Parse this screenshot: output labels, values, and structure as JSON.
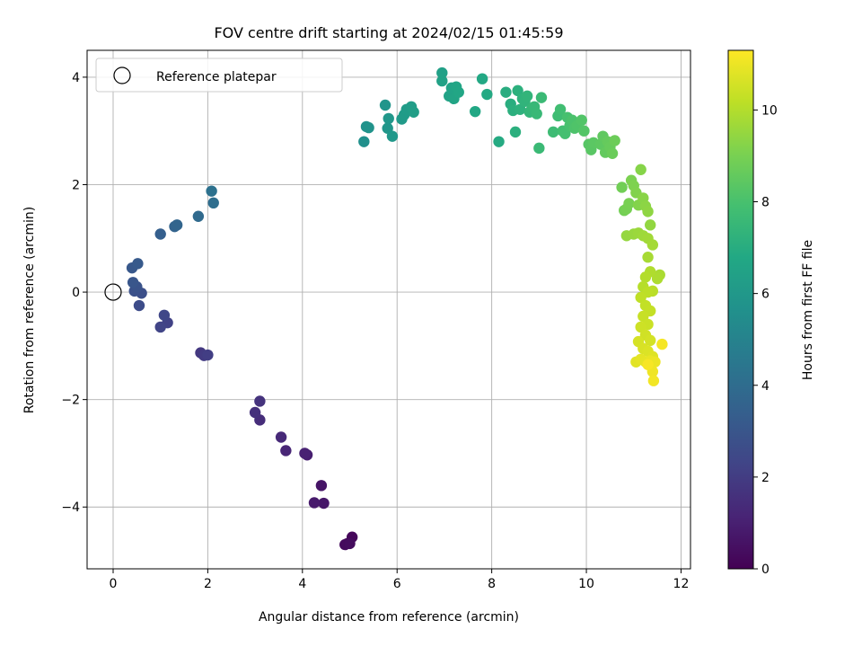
{
  "chart_data": {
    "type": "scatter",
    "title": "FOV centre drift starting at 2024/02/15 01:45:59",
    "xlabel": "Angular distance from reference (arcmin)",
    "ylabel": "Rotation from reference (arcmin)",
    "xlim": [
      -0.55,
      12.2
    ],
    "ylim": [
      -5.15,
      4.5
    ],
    "xticks": [
      "0",
      "2",
      "4",
      "6",
      "8",
      "10",
      "12"
    ],
    "xtick_values": [
      0,
      2,
      4,
      6,
      8,
      10,
      12
    ],
    "yticks": [
      "−4",
      "−2",
      "0",
      "2",
      "4"
    ],
    "ytick_values": [
      -4,
      -2,
      0,
      2,
      4
    ],
    "grid": true,
    "legend": {
      "placement": "top-left",
      "entries": [
        "Reference platepar"
      ]
    },
    "reference_point": {
      "x": 0,
      "y": 0
    },
    "colorbar": {
      "label": "Hours from first FF file",
      "colormap": "viridis",
      "min": 0,
      "max": 11.3,
      "ticks": [
        "0",
        "2",
        "4",
        "6",
        "8",
        "10"
      ],
      "tick_values": [
        0,
        2,
        4,
        6,
        8,
        10
      ]
    },
    "points": [
      [
        4.95,
        -4.68,
        0.1
      ],
      [
        5.05,
        -4.56,
        0.2
      ],
      [
        4.9,
        -4.7,
        0.3
      ],
      [
        5.0,
        -4.68,
        0.35
      ],
      [
        4.4,
        -3.6,
        0.6
      ],
      [
        4.45,
        -3.93,
        0.7
      ],
      [
        4.25,
        -3.92,
        0.8
      ],
      [
        4.1,
        -3.03,
        0.95
      ],
      [
        4.05,
        -3.0,
        1.05
      ],
      [
        3.65,
        -2.95,
        1.2
      ],
      [
        3.55,
        -2.7,
        1.3
      ],
      [
        3.1,
        -2.38,
        1.45
      ],
      [
        3.0,
        -2.24,
        1.55
      ],
      [
        3.1,
        -2.03,
        1.65
      ],
      [
        1.85,
        -1.13,
        1.85
      ],
      [
        1.92,
        -1.18,
        1.95
      ],
      [
        2.0,
        -1.17,
        2.05
      ],
      [
        1.15,
        -0.57,
        2.2
      ],
      [
        1.0,
        -0.65,
        2.3
      ],
      [
        1.08,
        -0.43,
        2.4
      ],
      [
        0.55,
        -0.25,
        2.6
      ],
      [
        0.6,
        -0.02,
        2.7
      ],
      [
        0.45,
        0.02,
        2.8
      ],
      [
        0.5,
        0.1,
        2.9
      ],
      [
        0.42,
        0.18,
        3.0
      ],
      [
        0.4,
        0.45,
        3.1
      ],
      [
        0.52,
        0.53,
        3.2
      ],
      [
        1.0,
        1.08,
        3.4
      ],
      [
        1.3,
        1.22,
        3.55
      ],
      [
        1.35,
        1.25,
        3.65
      ],
      [
        1.8,
        1.41,
        3.9
      ],
      [
        2.12,
        1.66,
        4.05
      ],
      [
        2.08,
        1.88,
        4.2
      ],
      [
        5.3,
        2.8,
        5.6
      ],
      [
        5.35,
        3.08,
        5.7
      ],
      [
        5.4,
        3.06,
        5.75
      ],
      [
        5.75,
        3.48,
        5.85
      ],
      [
        5.8,
        3.05,
        5.9
      ],
      [
        5.82,
        3.23,
        5.95
      ],
      [
        5.9,
        2.9,
        6.0
      ],
      [
        6.1,
        3.22,
        6.1
      ],
      [
        6.15,
        3.3,
        6.15
      ],
      [
        6.2,
        3.4,
        6.2
      ],
      [
        6.3,
        3.45,
        6.25
      ],
      [
        6.35,
        3.35,
        6.3
      ],
      [
        6.95,
        4.08,
        6.4
      ],
      [
        6.95,
        3.93,
        6.45
      ],
      [
        7.1,
        3.65,
        6.5
      ],
      [
        7.15,
        3.8,
        6.55
      ],
      [
        7.2,
        3.6,
        6.6
      ],
      [
        7.25,
        3.82,
        6.65
      ],
      [
        7.3,
        3.72,
        6.7
      ],
      [
        7.65,
        3.36,
        6.75
      ],
      [
        7.8,
        3.97,
        6.8
      ],
      [
        7.9,
        3.68,
        6.85
      ],
      [
        8.15,
        2.8,
        6.9
      ],
      [
        8.3,
        3.72,
        7.0
      ],
      [
        8.4,
        3.5,
        7.05
      ],
      [
        8.45,
        3.38,
        7.1
      ],
      [
        8.5,
        2.98,
        7.1
      ],
      [
        8.55,
        3.75,
        7.15
      ],
      [
        8.6,
        3.4,
        7.2
      ],
      [
        8.65,
        3.6,
        7.25
      ],
      [
        8.7,
        3.55,
        7.3
      ],
      [
        8.75,
        3.65,
        7.35
      ],
      [
        8.8,
        3.35,
        7.4
      ],
      [
        8.85,
        3.42,
        7.45
      ],
      [
        8.9,
        3.45,
        7.5
      ],
      [
        8.95,
        3.32,
        7.55
      ],
      [
        9.0,
        2.68,
        7.6
      ],
      [
        9.05,
        3.62,
        7.6
      ],
      [
        9.3,
        2.98,
        7.7
      ],
      [
        9.4,
        3.28,
        7.75
      ],
      [
        9.45,
        3.4,
        7.8
      ],
      [
        9.5,
        3.0,
        7.85
      ],
      [
        9.55,
        2.95,
        7.9
      ],
      [
        9.6,
        3.25,
        7.95
      ],
      [
        9.65,
        3.1,
        8.0
      ],
      [
        9.7,
        3.2,
        8.05
      ],
      [
        9.75,
        3.05,
        8.1
      ],
      [
        9.8,
        3.1,
        8.15
      ],
      [
        9.9,
        3.2,
        8.2
      ],
      [
        9.95,
        3.0,
        8.25
      ],
      [
        10.05,
        2.75,
        8.3
      ],
      [
        10.1,
        2.65,
        8.35
      ],
      [
        10.15,
        2.78,
        8.4
      ],
      [
        10.3,
        2.75,
        8.45
      ],
      [
        10.35,
        2.9,
        8.5
      ],
      [
        10.4,
        2.6,
        8.55
      ],
      [
        10.45,
        2.8,
        8.6
      ],
      [
        10.5,
        2.7,
        8.65
      ],
      [
        10.55,
        2.58,
        8.7
      ],
      [
        10.6,
        2.82,
        8.75
      ],
      [
        10.75,
        1.95,
        8.85
      ],
      [
        10.8,
        1.52,
        8.9
      ],
      [
        10.85,
        1.55,
        8.95
      ],
      [
        10.9,
        1.65,
        9.0
      ],
      [
        10.95,
        2.08,
        9.05
      ],
      [
        11.0,
        1.98,
        9.1
      ],
      [
        11.05,
        1.85,
        9.15
      ],
      [
        11.1,
        1.62,
        9.2
      ],
      [
        11.15,
        2.28,
        9.25
      ],
      [
        11.2,
        1.75,
        9.3
      ],
      [
        11.25,
        1.6,
        9.35
      ],
      [
        11.3,
        1.5,
        9.4
      ],
      [
        11.35,
        1.25,
        9.45
      ],
      [
        10.85,
        1.05,
        9.5
      ],
      [
        11.0,
        1.08,
        9.55
      ],
      [
        11.1,
        1.1,
        9.6
      ],
      [
        11.2,
        1.05,
        9.65
      ],
      [
        11.3,
        1.0,
        9.7
      ],
      [
        11.4,
        0.88,
        9.75
      ],
      [
        11.3,
        0.65,
        9.8
      ],
      [
        11.55,
        0.32,
        9.85
      ],
      [
        11.5,
        0.25,
        9.9
      ],
      [
        11.35,
        0.38,
        9.95
      ],
      [
        11.25,
        0.28,
        10.0
      ],
      [
        11.2,
        0.1,
        10.05
      ],
      [
        11.4,
        0.02,
        10.1
      ],
      [
        11.3,
        0.0,
        10.15
      ],
      [
        11.15,
        -0.1,
        10.2
      ],
      [
        11.25,
        -0.25,
        10.25
      ],
      [
        11.35,
        -0.35,
        10.3
      ],
      [
        11.2,
        -0.45,
        10.35
      ],
      [
        11.3,
        -0.6,
        10.4
      ],
      [
        11.15,
        -0.65,
        10.45
      ],
      [
        11.25,
        -0.8,
        10.5
      ],
      [
        11.35,
        -0.9,
        10.55
      ],
      [
        11.1,
        -0.92,
        10.6
      ],
      [
        11.2,
        -1.05,
        10.65
      ],
      [
        11.3,
        -1.1,
        10.7
      ],
      [
        11.4,
        -1.2,
        10.75
      ],
      [
        11.05,
        -1.3,
        10.8
      ],
      [
        11.15,
        -1.25,
        10.85
      ],
      [
        11.25,
        -1.3,
        10.9
      ],
      [
        11.35,
        -1.28,
        10.95
      ],
      [
        11.45,
        -1.3,
        11.0
      ],
      [
        11.4,
        -1.48,
        11.05
      ],
      [
        11.42,
        -1.65,
        11.1
      ],
      [
        11.6,
        -0.97,
        11.15
      ],
      [
        11.3,
        -1.35,
        11.2
      ]
    ]
  }
}
